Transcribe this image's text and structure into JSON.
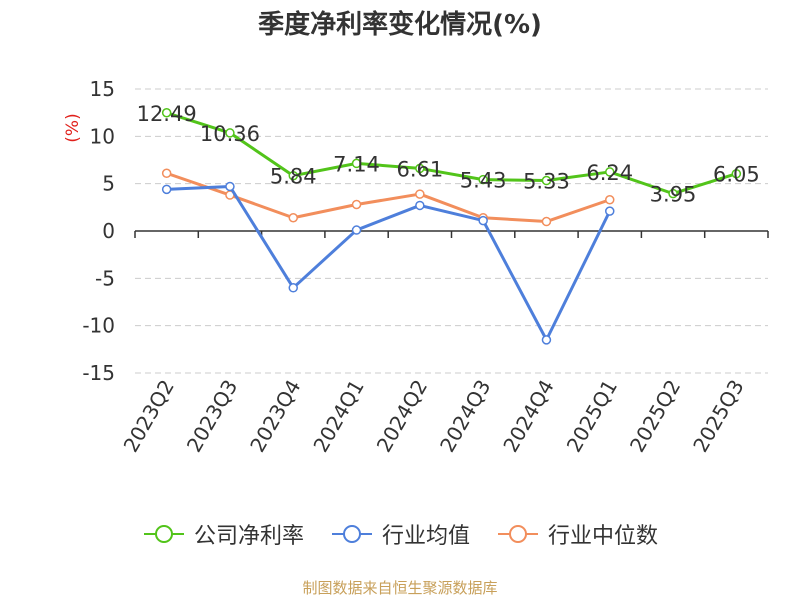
{
  "chart_data": {
    "type": "line",
    "title": "季度净利率变化情况(%)",
    "ylabel": "(%)",
    "categories": [
      "2023Q2",
      "2023Q3",
      "2023Q4",
      "2024Q1",
      "2024Q2",
      "2024Q3",
      "2024Q4",
      "2025Q1",
      "2025Q2",
      "2025Q3"
    ],
    "yticks": [
      15,
      10,
      5,
      0,
      -5,
      -10,
      -15
    ],
    "ylim": [
      -15,
      15
    ],
    "grid": true,
    "legend_position": "bottom",
    "series": [
      {
        "name": "公司净利率",
        "color": "#52c41a",
        "values": [
          12.49,
          10.36,
          5.84,
          7.14,
          6.61,
          5.43,
          5.33,
          6.24,
          3.95,
          6.05
        ],
        "labels": [
          "12.49",
          "10.36",
          "5.84",
          "7.14",
          "6.61",
          "5.43",
          "5.33",
          "6.24",
          "3.95",
          "6.05"
        ]
      },
      {
        "name": "行业均值",
        "color": "#4e7fdb",
        "values": [
          4.4,
          4.7,
          -6.0,
          0.1,
          2.7,
          1.1,
          -11.5,
          2.1,
          null,
          null
        ]
      },
      {
        "name": "行业中位数",
        "color": "#f28e5c",
        "values": [
          6.1,
          3.8,
          1.4,
          2.8,
          3.9,
          1.4,
          1.0,
          3.3,
          null,
          null
        ]
      }
    ],
    "source": "制图数据来自恒生聚源数据库"
  }
}
